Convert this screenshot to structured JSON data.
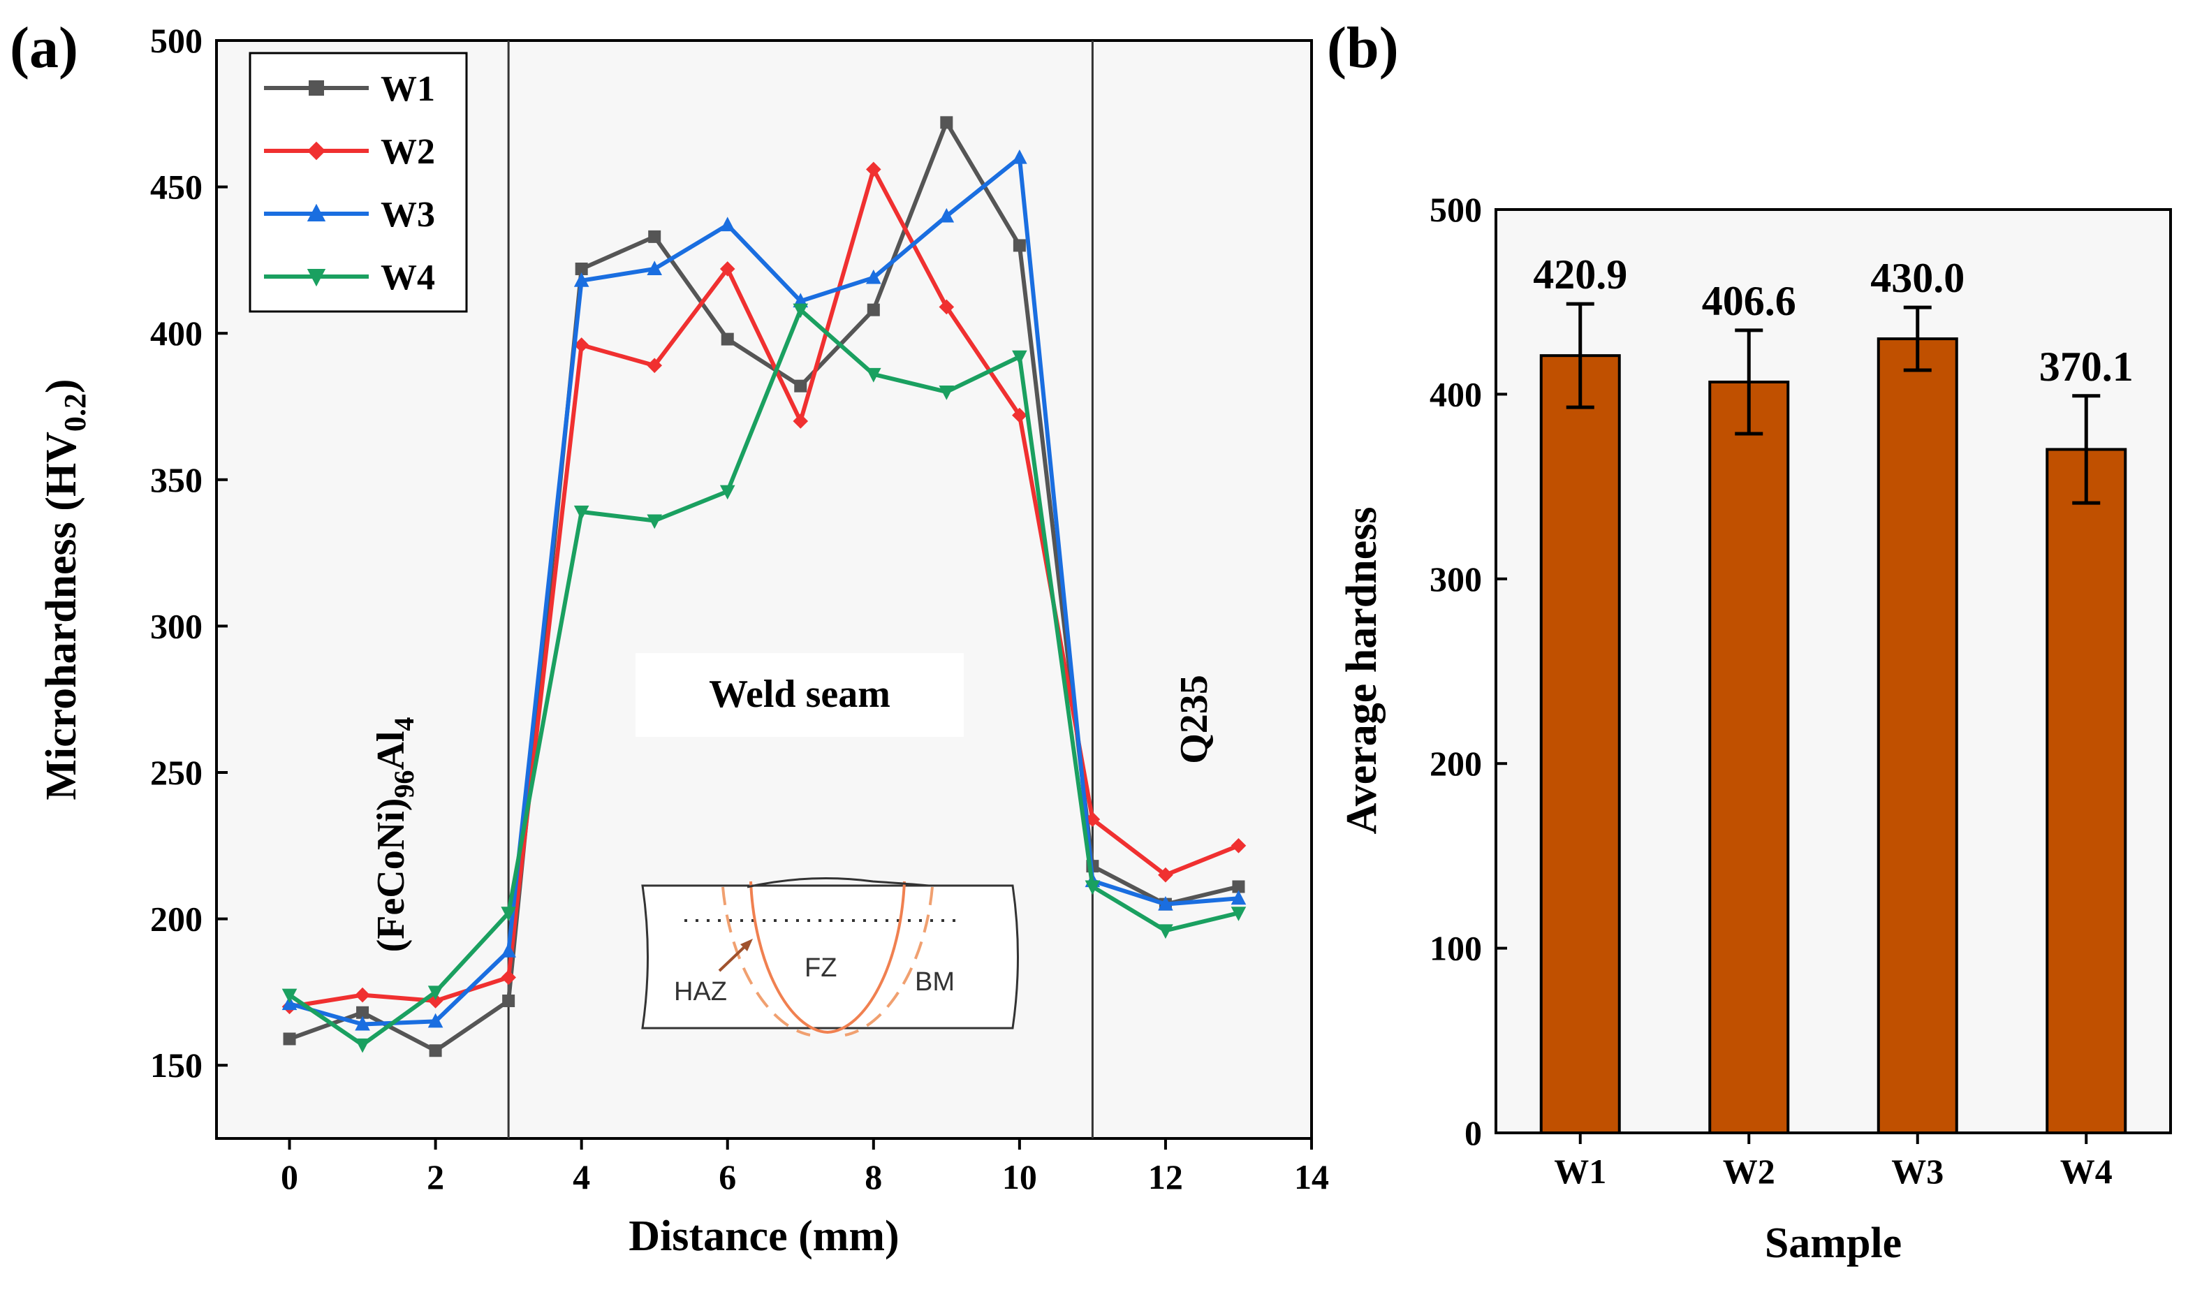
{
  "panel_a_label": "(a)",
  "panel_b_label": "(b)",
  "chart_data": [
    {
      "type": "line",
      "xlabel": "Distance (mm)",
      "ylabel_main": "Microhardness (HV",
      "ylabel_sub": "0.2",
      "ylabel_close": ")",
      "xlim": [
        -1,
        14
      ],
      "ylim": [
        125,
        500
      ],
      "xticks": [
        0,
        2,
        4,
        6,
        8,
        10,
        12,
        14
      ],
      "yticks": [
        150,
        200,
        250,
        300,
        350,
        400,
        450,
        500
      ],
      "x": [
        0,
        1,
        2,
        3,
        4,
        5,
        6,
        7,
        8,
        9,
        10,
        11,
        12,
        13
      ],
      "series": [
        {
          "name": "W1",
          "color": "#555555",
          "marker": "square",
          "values": [
            159,
            168,
            155,
            172,
            422,
            433,
            398,
            382,
            408,
            472,
            430,
            218,
            205,
            211
          ]
        },
        {
          "name": "W2",
          "color": "#f03030",
          "marker": "diamond",
          "values": [
            170,
            174,
            172,
            180,
            396,
            389,
            422,
            370,
            456,
            409,
            372,
            234,
            215,
            225
          ]
        },
        {
          "name": "W3",
          "color": "#1a6ee0",
          "marker": "triangle-up",
          "values": [
            171,
            164,
            165,
            189,
            418,
            422,
            437,
            411,
            419,
            440,
            460,
            213,
            205,
            207
          ]
        },
        {
          "name": "W4",
          "color": "#1aa060",
          "marker": "triangle-down",
          "values": [
            174,
            157,
            175,
            202,
            339,
            336,
            346,
            408,
            386,
            380,
            392,
            211,
            196,
            202
          ]
        }
      ],
      "boundaries": [
        3,
        11
      ],
      "regions": {
        "left_prefix": "(FeCoNi)",
        "left_sub": "96",
        "left_suffix": "Al",
        "left_sub2": "4",
        "middle": "Weld seam",
        "right": "Q235"
      },
      "inset": {
        "haz": "HAZ",
        "fz": "FZ",
        "bm": "BM"
      }
    },
    {
      "type": "bar",
      "title": "",
      "xlabel": "Sample",
      "ylabel": "Average hardness",
      "categories": [
        "W1",
        "W2",
        "W3",
        "W4"
      ],
      "values": [
        420.9,
        406.6,
        430.0,
        370.1
      ],
      "value_labels": [
        "420.9",
        "406.6",
        "430.0",
        "370.1"
      ],
      "errors": [
        28,
        28,
        17,
        29
      ],
      "ylim": [
        0,
        500
      ],
      "yticks": [
        0,
        100,
        200,
        300,
        400,
        500
      ],
      "bar_color": "#c05000"
    }
  ]
}
